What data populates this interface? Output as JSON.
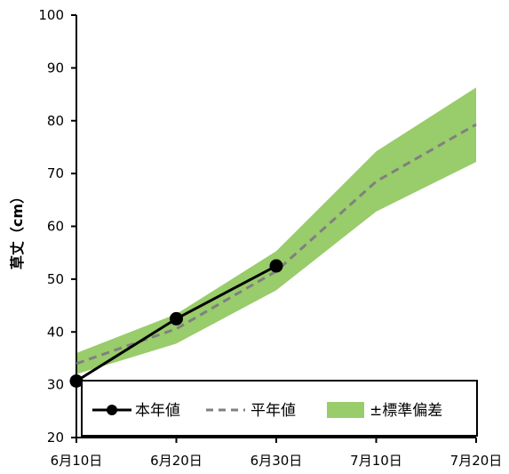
{
  "chart_data": {
    "type": "line",
    "x": [
      "6月10日",
      "6月20日",
      "6月30日",
      "7月10日",
      "7月20日"
    ],
    "ylabel": "草丈（cm）",
    "ylim": [
      20,
      100
    ],
    "yticks": [
      20,
      30,
      40,
      50,
      60,
      70,
      80,
      90,
      100
    ],
    "grid": false,
    "legend_position": "bottom",
    "series": [
      {
        "name": "本年値",
        "values": [
          30.7,
          42.5,
          52.5,
          null,
          null
        ],
        "color": "#000000",
        "style": "solid-with-markers"
      },
      {
        "name": "平年値",
        "values": [
          34.0,
          40.6,
          51.5,
          68.5,
          79.3
        ],
        "color": "#808080",
        "style": "dashed"
      }
    ],
    "band": {
      "name": "±標準偏差",
      "upper": [
        36.0,
        43.4,
        55.3,
        74.2,
        86.3
      ],
      "lower": [
        32.0,
        37.8,
        47.9,
        62.8,
        72.2
      ],
      "color": "#99cc6a"
    }
  }
}
